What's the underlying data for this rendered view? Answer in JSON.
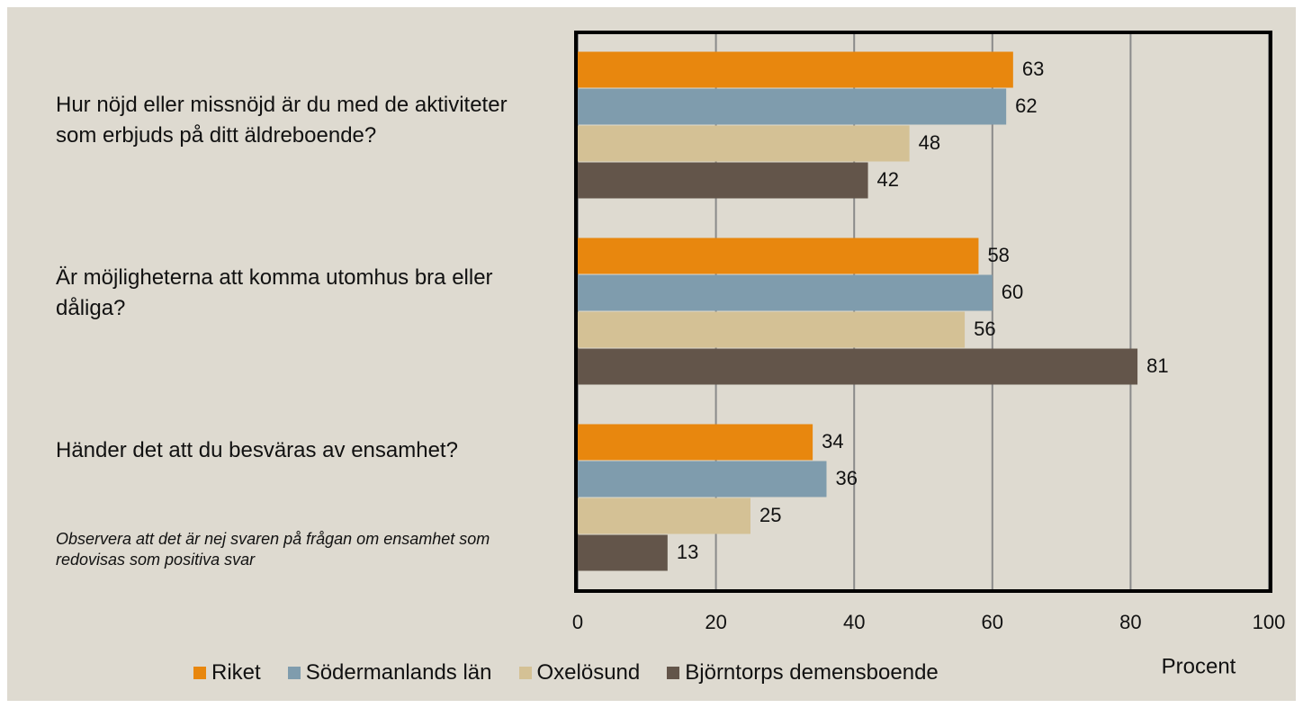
{
  "chart_data": {
    "type": "hbar",
    "categories": [
      "Hur nöjd eller missnöjd är du med de aktiviteter som erbjuds på ditt äldreboende?",
      "Är möjligheterna att komma utomhus bra eller dåliga?",
      "Händer det att du besväras av ensamhet?"
    ],
    "series": [
      {
        "name": "Riket",
        "color": "#e8870e",
        "values": [
          63,
          58,
          34
        ]
      },
      {
        "name": "Södermanlands län",
        "color": "#7f9cad",
        "values": [
          62,
          60,
          36
        ]
      },
      {
        "name": "Oxelösund",
        "color": "#d4c195",
        "values": [
          48,
          56,
          25
        ]
      },
      {
        "name": "Björntorps demensboende",
        "color": "#63554a",
        "values": [
          42,
          81,
          13
        ]
      }
    ],
    "xlabel": "Procent",
    "annotation": "Observera att det är nej svaren på frågan om ensamhet som redovisas som positiva svar",
    "xlim": [
      0,
      100
    ],
    "xticks": [
      0,
      20,
      40,
      60,
      80,
      100
    ],
    "grid": true,
    "legend": "bottom"
  }
}
